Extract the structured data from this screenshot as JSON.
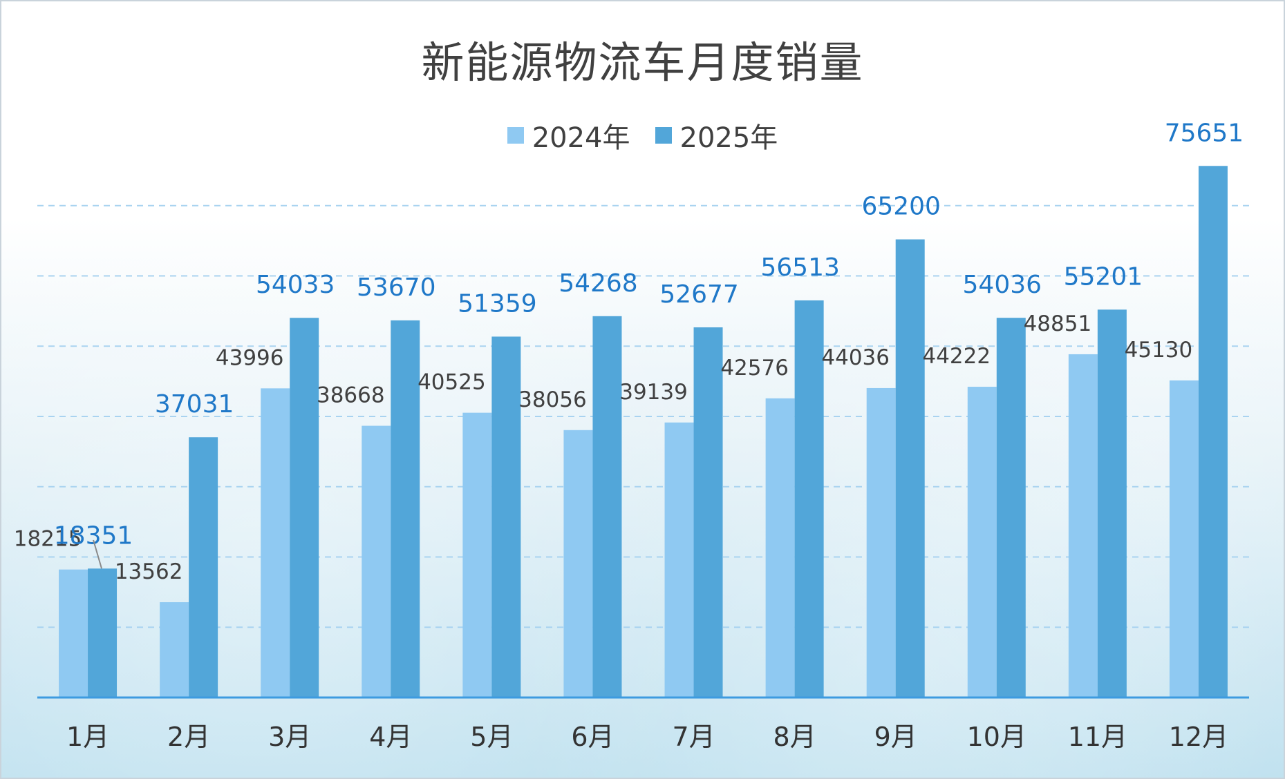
{
  "chart_data": {
    "type": "bar",
    "title": "新能源物流车月度销量",
    "xlabel": "",
    "ylabel": "",
    "ylim": [
      0,
      80000
    ],
    "grid": true,
    "legend_position": "top-center",
    "categories": [
      "1月",
      "2月",
      "3月",
      "4月",
      "5月",
      "6月",
      "7月",
      "8月",
      "9月",
      "10月",
      "11月",
      "12月"
    ],
    "series": [
      {
        "name": "2024年",
        "color": "#8fc9f2",
        "label_color": "#404040",
        "values": [
          18215,
          13562,
          43996,
          38668,
          40525,
          38056,
          39139,
          42576,
          44036,
          44222,
          48851,
          45130
        ]
      },
      {
        "name": "2025年",
        "color": "#52a6d9",
        "label_color": "#1f78c8",
        "values": [
          18351,
          37031,
          54033,
          53670,
          51359,
          54268,
          52677,
          56513,
          65200,
          54036,
          55201,
          75651
        ]
      }
    ]
  },
  "watermark": "",
  "colors": {
    "axis": "#3d9be0",
    "grid": "#a9d3f0",
    "category_label": "#333333"
  }
}
